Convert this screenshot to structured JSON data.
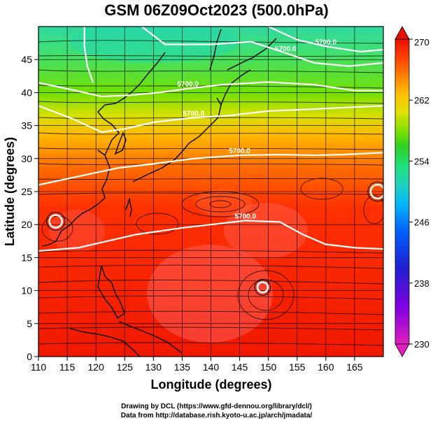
{
  "title": "GSM 06Z09Oct2023 (500.0hPa)",
  "map": {
    "lon_range": [
      110,
      170
    ],
    "lat_range": [
      0,
      50
    ],
    "x_ticks": [
      110,
      115,
      120,
      125,
      130,
      135,
      140,
      145,
      150,
      155,
      160,
      165
    ],
    "y_ticks": [
      0,
      5,
      10,
      15,
      20,
      25,
      30,
      35,
      40,
      45
    ],
    "xlabel": "Longitude (degrees)",
    "ylabel": "Latitude  (degrees)",
    "grid": true
  },
  "colorbar": {
    "ticks": [
      "270",
      "262",
      "254",
      "246",
      "238",
      "230"
    ],
    "range": [
      230,
      270
    ],
    "colors": [
      "#e020c0",
      "#8000e0",
      "#2020d0",
      "#0060ff",
      "#00b0ff",
      "#20d0c0",
      "#20e080",
      "#30d020",
      "#80e000",
      "#e0e000",
      "#ffc000",
      "#ff8000",
      "#ff4000",
      "#e81000"
    ]
  },
  "contours": [
    {
      "label": "5700.0",
      "values": [
        [
          110,
          16
        ],
        [
          117,
          16.5
        ],
        [
          122,
          17.5
        ],
        [
          127,
          18.5
        ],
        [
          135,
          19.5
        ],
        [
          142,
          20.2
        ],
        [
          146,
          20.6
        ],
        [
          152,
          20.4
        ],
        [
          156,
          18.5
        ],
        [
          160,
          17
        ],
        [
          165,
          16.5
        ],
        [
          170,
          16.3
        ]
      ]
    },
    {
      "label": "5700.0",
      "values": [
        [
          110,
          26
        ],
        [
          118,
          27.5
        ],
        [
          124,
          28.6
        ],
        [
          130,
          29.2
        ],
        [
          137,
          30
        ],
        [
          145,
          30.5
        ],
        [
          152,
          30.6
        ],
        [
          158,
          30.5
        ],
        [
          163,
          30.6
        ],
        [
          170,
          30.9
        ]
      ]
    },
    {
      "label": "5700.0",
      "values": [
        [
          110,
          38
        ],
        [
          116,
          36
        ],
        [
          121,
          34
        ],
        [
          125,
          34.5
        ],
        [
          130,
          35.5
        ],
        [
          137,
          36.2
        ],
        [
          143,
          36.5
        ],
        [
          150,
          37.2
        ],
        [
          158,
          37.5
        ],
        [
          165,
          37.8
        ],
        [
          170,
          38
        ]
      ]
    },
    {
      "label": "5700.0",
      "values": [
        [
          110,
          41.5
        ],
        [
          117,
          40.2
        ],
        [
          121,
          39.4
        ],
        [
          126,
          39.6
        ],
        [
          131,
          40
        ],
        [
          136,
          40.6
        ],
        [
          142,
          41.2
        ],
        [
          150,
          41.6
        ],
        [
          158,
          41.2
        ],
        [
          165,
          40.3
        ],
        [
          170,
          40.3
        ]
      ]
    },
    {
      "label": "5700.0",
      "values": [
        [
          128,
          50
        ],
        [
          132,
          47.3
        ],
        [
          140,
          47.3
        ],
        [
          147,
          47.7
        ],
        [
          153,
          46
        ],
        [
          158,
          44.5
        ],
        [
          164,
          44
        ],
        [
          170,
          44.5
        ]
      ]
    },
    {
      "label": "",
      "values": [
        [
          118,
          50
        ],
        [
          118,
          47
        ],
        [
          118.5,
          44
        ],
        [
          119.5,
          41.5
        ]
      ]
    },
    {
      "label": "5700.0",
      "values": [
        [
          150,
          50
        ],
        [
          155,
          48
        ],
        [
          160,
          47
        ],
        [
          166,
          46.2
        ],
        [
          170,
          46.5
        ]
      ]
    }
  ],
  "vortices": [
    {
      "center": [
        113,
        20.5
      ],
      "r": 1.1
    },
    {
      "center": [
        149,
        10.5
      ],
      "r": 0.9
    },
    {
      "center": [
        169,
        25
      ],
      "r": 1.2
    }
  ],
  "credits": {
    "line1": "Drawing by DCL (https://www.gfd-dennou.org/library/dcl/)",
    "line2": "Data from http://database.rish.kyoto-u.ac.jp/arch/jmadata/"
  }
}
